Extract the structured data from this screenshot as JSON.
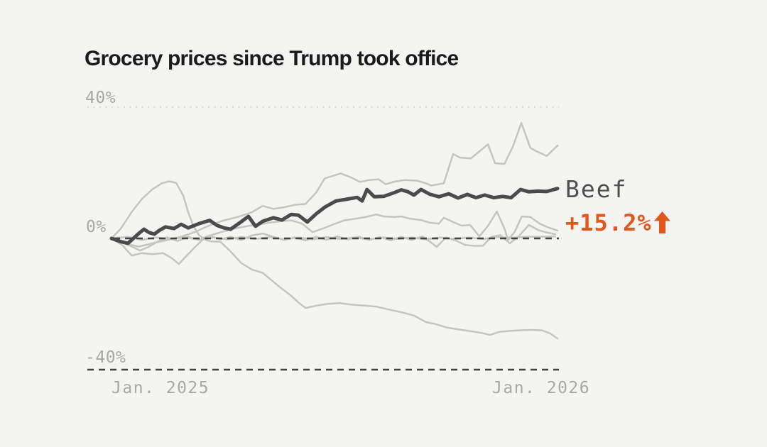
{
  "colors": {
    "background": "#f4f4f3",
    "title": "#1b1b1b",
    "emphasis_line": "#4b4b4b",
    "muted_line": "#c5c4c2",
    "accent_orange": "#e2571b",
    "grid_dark": "#414141",
    "grid_light": "#dcdbd9",
    "tick_text": "#a9a8a6",
    "series_label_text": "#4f4f4f"
  },
  "chart_data": {
    "type": "line",
    "title": "Grocery prices since Trump took office",
    "y_unit": "percent change since Jan 2025",
    "ylim": [
      -40,
      40
    ],
    "grid": "horizontal-only",
    "legend_position": "right-of-line-end",
    "highlight": {
      "series": "Beef",
      "change": "+15.2%",
      "direction": "up"
    },
    "y_axis": {
      "ticks": [
        {
          "label": "40%",
          "value": 40,
          "grid_style": "dotted"
        },
        {
          "label": "0%",
          "value": 0,
          "grid_style": "dashed"
        },
        {
          "label": "-40%",
          "value": -40,
          "grid_style": "dashed"
        }
      ]
    },
    "x_axis": {
      "ticks": [
        {
          "label": "Jan. 2025",
          "t": 0
        },
        {
          "label": "Jan. 2026",
          "t": 1
        }
      ]
    },
    "series": [
      {
        "name": "gray-line-flat",
        "emphasis": false,
        "end_value": 0.6,
        "points": [
          [
            0,
            0
          ],
          [
            0.037,
            0.5
          ],
          [
            0.068,
            -0.5
          ],
          [
            0.1,
            0.3
          ],
          [
            0.132,
            -0.3
          ],
          [
            0.164,
            0.4
          ],
          [
            0.196,
            -0.4
          ],
          [
            0.228,
            0.3
          ],
          [
            0.26,
            -0.3
          ],
          [
            0.291,
            0.4
          ],
          [
            0.323,
            -0.2
          ],
          [
            0.355,
            0.4
          ],
          [
            0.387,
            -0.3
          ],
          [
            0.419,
            0.3
          ],
          [
            0.451,
            -0.3
          ],
          [
            0.482,
            0.4
          ],
          [
            0.514,
            -0.2
          ],
          [
            0.546,
            0.3
          ],
          [
            0.578,
            -0.3
          ],
          [
            0.61,
            0.3
          ],
          [
            0.642,
            -0.2
          ],
          [
            0.673,
            0.3
          ],
          [
            0.705,
            -0.3
          ],
          [
            0.737,
            0.3
          ],
          [
            0.769,
            -0.2
          ],
          [
            0.801,
            0.3
          ],
          [
            0.833,
            -0.2
          ],
          [
            0.864,
            0.4
          ],
          [
            0.896,
            0.2
          ],
          [
            0.928,
            0.5
          ],
          [
            0.96,
            0.5
          ],
          [
            0.995,
            0.6
          ]
        ]
      },
      {
        "name": "gray-line-near-zero",
        "emphasis": false,
        "end_value": 1.3,
        "points": [
          [
            0,
            0
          ],
          [
            0.021,
            -1
          ],
          [
            0.041,
            -2.2
          ],
          [
            0.064,
            -3.7
          ],
          [
            0.084,
            -2.5
          ],
          [
            0.103,
            -1
          ],
          [
            0.124,
            0.3
          ],
          [
            0.148,
            -0.8
          ],
          [
            0.172,
            0.5
          ],
          [
            0.196,
            -0.5
          ],
          [
            0.22,
            0.8
          ],
          [
            0.244,
            -0.3
          ],
          [
            0.267,
            0.5
          ],
          [
            0.291,
            -0.5
          ],
          [
            0.315,
            0.9
          ],
          [
            0.339,
            1.5
          ],
          [
            0.363,
            0.5
          ],
          [
            0.387,
            -0.5
          ],
          [
            0.411,
            0.3
          ],
          [
            0.435,
            -0.6
          ],
          [
            0.459,
            0.5
          ],
          [
            0.482,
            -0.4
          ],
          [
            0.506,
            0.6
          ],
          [
            0.53,
            -0.3
          ],
          [
            0.554,
            0.5
          ],
          [
            0.578,
            -0.5
          ],
          [
            0.602,
            0.4
          ],
          [
            0.626,
            -0.6
          ],
          [
            0.65,
            0.5
          ],
          [
            0.673,
            -0.5
          ],
          [
            0.697,
            0.6
          ],
          [
            0.721,
            -1.7
          ],
          [
            0.729,
            -2.6
          ],
          [
            0.75,
            0.3
          ],
          [
            0.769,
            -0.5
          ],
          [
            0.793,
            -2
          ],
          [
            0.814,
            -2.3
          ],
          [
            0.833,
            -2.2
          ],
          [
            0.852,
            0.5
          ],
          [
            0.872,
            1
          ],
          [
            0.893,
            -1.5
          ],
          [
            0.912,
            0.5
          ],
          [
            0.936,
            4.1
          ],
          [
            0.957,
            2.5
          ],
          [
            0.976,
            1.8
          ],
          [
            0.995,
            1.3
          ]
        ]
      },
      {
        "name": "gray-line-mid",
        "emphasis": false,
        "end_value": 2.4,
        "points": [
          [
            0,
            0
          ],
          [
            0.024,
            -2
          ],
          [
            0.045,
            -5.2
          ],
          [
            0.068,
            -4.5
          ],
          [
            0.092,
            -4.8
          ],
          [
            0.116,
            -4.5
          ],
          [
            0.135,
            -6
          ],
          [
            0.151,
            -7.8
          ],
          [
            0.167,
            -5.5
          ],
          [
            0.188,
            -2.5
          ],
          [
            0.212,
            0.5
          ],
          [
            0.236,
            1.5
          ],
          [
            0.26,
            2.5
          ],
          [
            0.283,
            3.2
          ],
          [
            0.307,
            3.8
          ],
          [
            0.331,
            4.3
          ],
          [
            0.355,
            4.8
          ],
          [
            0.379,
            5.2
          ],
          [
            0.403,
            5.5
          ],
          [
            0.427,
            4.5
          ],
          [
            0.451,
            1.9
          ],
          [
            0.474,
            3
          ],
          [
            0.498,
            4.3
          ],
          [
            0.522,
            5.5
          ],
          [
            0.546,
            6
          ],
          [
            0.57,
            6.5
          ],
          [
            0.594,
            7.3
          ],
          [
            0.61,
            6.7
          ],
          [
            0.634,
            6.5
          ],
          [
            0.65,
            6.7
          ],
          [
            0.67,
            6
          ],
          [
            0.694,
            5.6
          ],
          [
            0.713,
            4.8
          ],
          [
            0.734,
            4.5
          ],
          [
            0.745,
            6.3
          ],
          [
            0.766,
            5
          ],
          [
            0.785,
            3.9
          ],
          [
            0.804,
            4.1
          ],
          [
            0.825,
            0.6
          ],
          [
            0.845,
            4
          ],
          [
            0.864,
            8.2
          ],
          [
            0.881,
            3
          ],
          [
            0.889,
            -0.5
          ],
          [
            0.904,
            2
          ],
          [
            0.92,
            6.7
          ],
          [
            0.939,
            6.5
          ],
          [
            0.96,
            4.5
          ],
          [
            0.976,
            3.5
          ],
          [
            1,
            2.4
          ]
        ]
      },
      {
        "name": "gray-line-early-spike-then-decline",
        "emphasis": false,
        "end_value": -30.5,
        "points": [
          [
            0,
            0
          ],
          [
            0.021,
            3
          ],
          [
            0.045,
            8
          ],
          [
            0.068,
            12
          ],
          [
            0.092,
            15
          ],
          [
            0.113,
            16.8
          ],
          [
            0.129,
            17.4
          ],
          [
            0.145,
            16.9
          ],
          [
            0.161,
            13
          ],
          [
            0.172,
            8
          ],
          [
            0.183,
            4
          ],
          [
            0.196,
            1
          ],
          [
            0.212,
            -0.5
          ],
          [
            0.223,
            -0.9
          ],
          [
            0.244,
            -1
          ],
          [
            0.267,
            -4
          ],
          [
            0.291,
            -7.5
          ],
          [
            0.315,
            -9.5
          ],
          [
            0.339,
            -10.5
          ],
          [
            0.355,
            -12.3
          ],
          [
            0.379,
            -15
          ],
          [
            0.403,
            -17.5
          ],
          [
            0.419,
            -19.5
          ],
          [
            0.435,
            -21.2
          ],
          [
            0.459,
            -20.5
          ],
          [
            0.482,
            -20
          ],
          [
            0.511,
            -19.7
          ],
          [
            0.538,
            -20.2
          ],
          [
            0.57,
            -20.5
          ],
          [
            0.594,
            -20.8
          ],
          [
            0.626,
            -21.8
          ],
          [
            0.65,
            -22.5
          ],
          [
            0.678,
            -23.5
          ],
          [
            0.705,
            -25.5
          ],
          [
            0.729,
            -26.2
          ],
          [
            0.753,
            -27.2
          ],
          [
            0.782,
            -27.8
          ],
          [
            0.806,
            -28.3
          ],
          [
            0.829,
            -28.8
          ],
          [
            0.849,
            -29.4
          ],
          [
            0.869,
            -28.5
          ],
          [
            0.893,
            -28.2
          ],
          [
            0.915,
            -28
          ],
          [
            0.939,
            -27.9
          ],
          [
            0.965,
            -28
          ],
          [
            0.984,
            -29
          ],
          [
            1,
            -30.5
          ]
        ]
      },
      {
        "name": "gray-line-late-riser",
        "emphasis": false,
        "end_value": 28.3,
        "points": [
          [
            0,
            0
          ],
          [
            0.029,
            -1.5
          ],
          [
            0.061,
            -2.5
          ],
          [
            0.092,
            -1.5
          ],
          [
            0.124,
            -0.5
          ],
          [
            0.156,
            0.5
          ],
          [
            0.188,
            2
          ],
          [
            0.22,
            4
          ],
          [
            0.252,
            5.5
          ],
          [
            0.283,
            6.5
          ],
          [
            0.315,
            8
          ],
          [
            0.339,
            9.9
          ],
          [
            0.363,
            9
          ],
          [
            0.387,
            9.5
          ],
          [
            0.411,
            10.2
          ],
          [
            0.435,
            10.5
          ],
          [
            0.459,
            14
          ],
          [
            0.478,
            18.3
          ],
          [
            0.514,
            19.8
          ],
          [
            0.538,
            18.5
          ],
          [
            0.557,
            17.2
          ],
          [
            0.578,
            17.8
          ],
          [
            0.599,
            18
          ],
          [
            0.615,
            16.5
          ],
          [
            0.634,
            17.3
          ],
          [
            0.658,
            17.8
          ],
          [
            0.685,
            17.6
          ],
          [
            0.705,
            16.8
          ],
          [
            0.717,
            16.1
          ],
          [
            0.745,
            16.8
          ],
          [
            0.766,
            25.7
          ],
          [
            0.782,
            24.6
          ],
          [
            0.806,
            24.4
          ],
          [
            0.825,
            26.5
          ],
          [
            0.844,
            28.7
          ],
          [
            0.86,
            22.9
          ],
          [
            0.881,
            22.7
          ],
          [
            0.9,
            28
          ],
          [
            0.919,
            35.2
          ],
          [
            0.939,
            27.6
          ],
          [
            0.952,
            26.6
          ],
          [
            0.976,
            25.1
          ],
          [
            1,
            28.3
          ]
        ]
      },
      {
        "name": "Beef",
        "emphasis": true,
        "end_value": 15.2,
        "points": [
          [
            0,
            0
          ],
          [
            0.021,
            -1
          ],
          [
            0.037,
            -1.5
          ],
          [
            0.061,
            1.5
          ],
          [
            0.073,
            2.8
          ],
          [
            0.084,
            1.8
          ],
          [
            0.096,
            1.3
          ],
          [
            0.108,
            2.5
          ],
          [
            0.121,
            3.5
          ],
          [
            0.14,
            3
          ],
          [
            0.156,
            4.3
          ],
          [
            0.172,
            3.2
          ],
          [
            0.196,
            4.5
          ],
          [
            0.22,
            5.5
          ],
          [
            0.236,
            4
          ],
          [
            0.252,
            3.2
          ],
          [
            0.267,
            2.8
          ],
          [
            0.288,
            4.8
          ],
          [
            0.307,
            6.7
          ],
          [
            0.323,
            3.7
          ],
          [
            0.339,
            5.2
          ],
          [
            0.363,
            6.3
          ],
          [
            0.382,
            5.6
          ],
          [
            0.403,
            7.3
          ],
          [
            0.419,
            7.1
          ],
          [
            0.439,
            5
          ],
          [
            0.459,
            7.5
          ],
          [
            0.478,
            9.5
          ],
          [
            0.503,
            11.4
          ],
          [
            0.53,
            12
          ],
          [
            0.551,
            12.5
          ],
          [
            0.562,
            11.4
          ],
          [
            0.573,
            14.9
          ],
          [
            0.589,
            12.7
          ],
          [
            0.61,
            12.8
          ],
          [
            0.631,
            13.8
          ],
          [
            0.65,
            14.8
          ],
          [
            0.665,
            14.2
          ],
          [
            0.678,
            13.2
          ],
          [
            0.694,
            14.9
          ],
          [
            0.713,
            13.5
          ],
          [
            0.734,
            12.7
          ],
          [
            0.756,
            13.6
          ],
          [
            0.777,
            12.3
          ],
          [
            0.798,
            13.4
          ],
          [
            0.817,
            12.4
          ],
          [
            0.837,
            13.2
          ],
          [
            0.857,
            12.4
          ],
          [
            0.877,
            12.8
          ],
          [
            0.896,
            12.4
          ],
          [
            0.917,
            14.9
          ],
          [
            0.936,
            14.2
          ],
          [
            0.957,
            14.4
          ],
          [
            0.976,
            14.3
          ],
          [
            1,
            15.2
          ]
        ]
      }
    ]
  }
}
